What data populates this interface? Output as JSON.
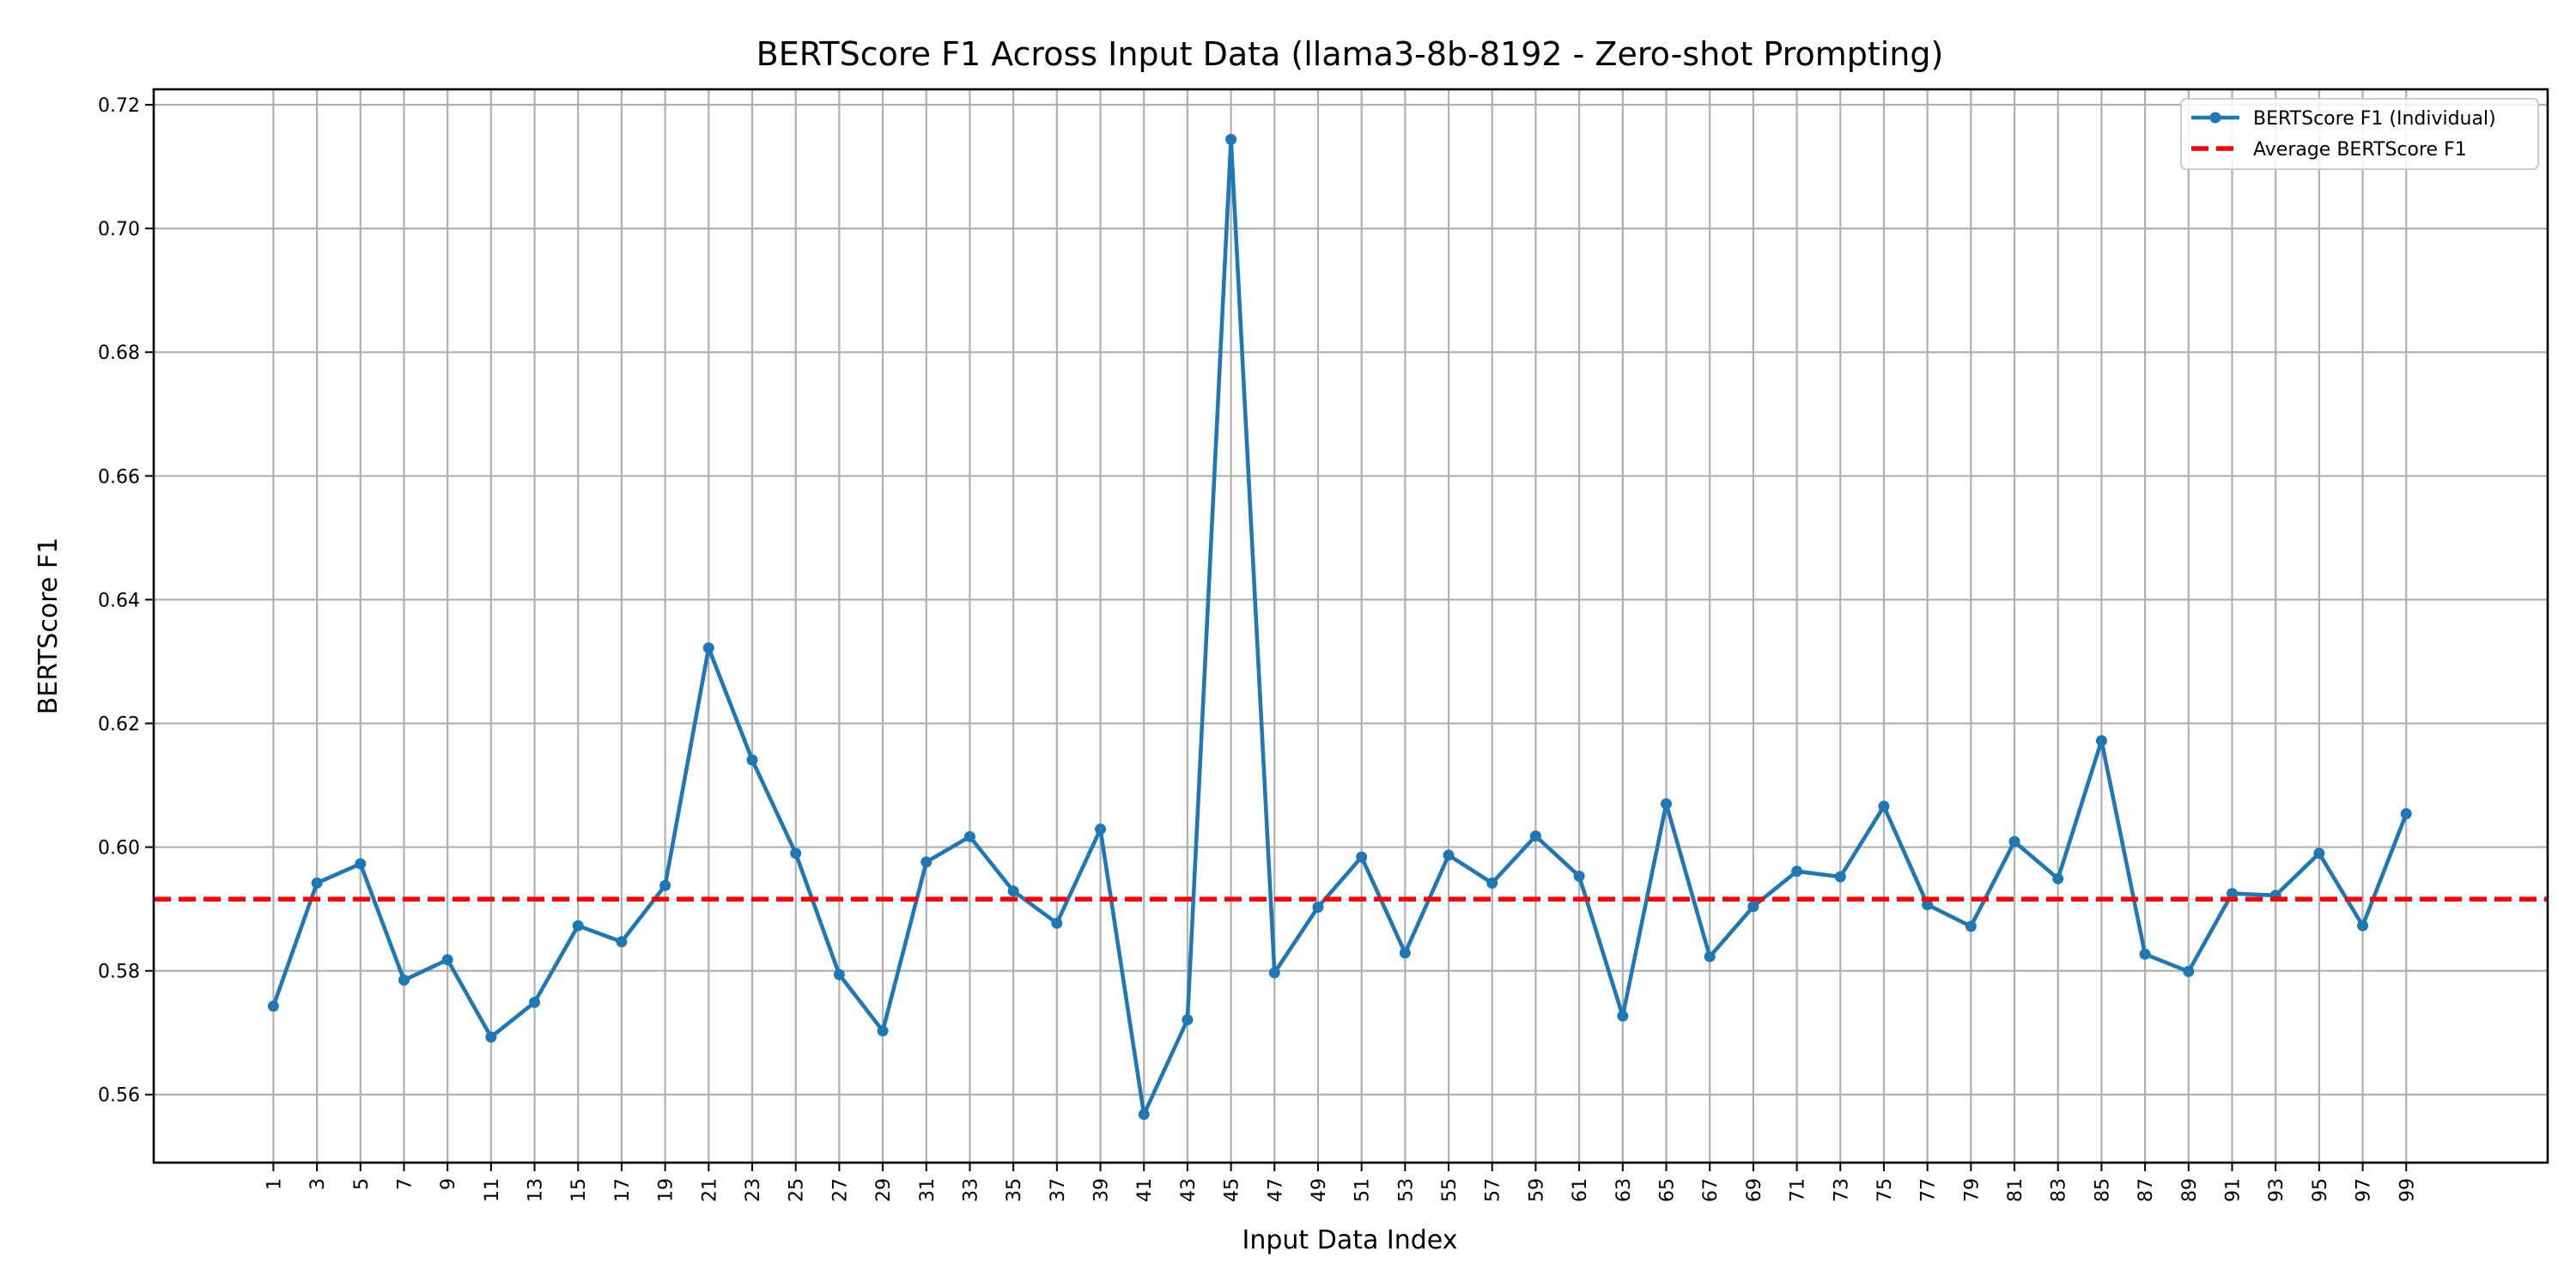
{
  "chart_data": {
    "type": "line",
    "title": "BERTScore F1 Across Input Data (llama3-8b-8192 - Zero-shot Prompting)",
    "xlabel": "Input Data Index",
    "ylabel": "BERTScore F1",
    "xlim": [
      -4.5,
      105.5
    ],
    "ylim": [
      0.549,
      0.7225
    ],
    "x_ticks": [
      1,
      3,
      5,
      7,
      9,
      11,
      13,
      15,
      17,
      19,
      21,
      23,
      25,
      27,
      29,
      31,
      33,
      35,
      37,
      39,
      41,
      43,
      45,
      47,
      49,
      51,
      53,
      55,
      57,
      59,
      61,
      63,
      65,
      67,
      69,
      71,
      73,
      75,
      77,
      79,
      81,
      83,
      85,
      87,
      89,
      91,
      93,
      95,
      97,
      99
    ],
    "y_ticks": [
      "0.56",
      "0.58",
      "0.60",
      "0.62",
      "0.64",
      "0.66",
      "0.68",
      "0.70",
      "0.72"
    ],
    "grid": true,
    "legend_position": "top-right",
    "x": [
      1,
      3,
      5,
      7,
      9,
      11,
      13,
      15,
      17,
      19,
      21,
      23,
      25,
      27,
      29,
      31,
      33,
      35,
      37,
      39,
      41,
      43,
      45,
      47,
      49,
      51,
      53,
      55,
      57,
      59,
      61,
      63,
      65,
      67,
      69,
      71,
      73,
      75,
      77,
      79,
      81,
      83,
      85,
      87,
      89,
      91,
      93,
      95,
      97,
      99
    ],
    "series": [
      {
        "name": "BERTScore F1 (Individual)",
        "color": "#1f77b4",
        "style": "solid-with-markers",
        "values": [
          0.5743,
          0.5942,
          0.5973,
          0.5785,
          0.5818,
          0.5693,
          0.5749,
          0.5873,
          0.5847,
          0.5938,
          0.6322,
          0.6141,
          0.599,
          0.5794,
          0.5703,
          0.5976,
          0.6017,
          0.5929,
          0.5877,
          0.6029,
          0.5568,
          0.5721,
          0.7144,
          0.5797,
          0.5903,
          0.5984,
          0.5829,
          0.5987,
          0.5942,
          0.6018,
          0.5953,
          0.5727,
          0.607,
          0.5823,
          0.5904,
          0.5961,
          0.5952,
          0.6066,
          0.5907,
          0.5872,
          0.6009,
          0.5949,
          0.6172,
          0.5827,
          0.5799,
          0.5925,
          0.5922,
          0.599,
          0.5873,
          0.6054
        ]
      },
      {
        "name": "Average BERTScore F1",
        "color": "#ff0000",
        "style": "dashed",
        "value": 0.5916
      }
    ]
  }
}
